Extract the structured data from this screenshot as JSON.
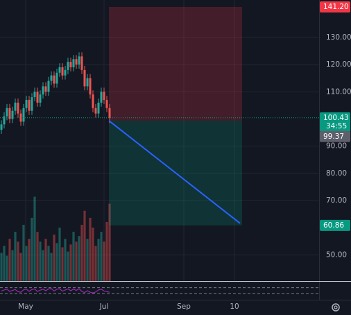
{
  "chart_data": {
    "type": "candlestick",
    "xlim": [
      -0.5,
      114.5
    ],
    "xticks": [
      {
        "value": 8.75,
        "label": "May"
      },
      {
        "value": 37,
        "label": "Jul"
      },
      {
        "value": 65.75,
        "label": "Sep"
      },
      {
        "value": 84,
        "label": "10"
      }
    ],
    "ylim": [
      40.4,
      143.75
    ],
    "yticks": [
      {
        "value": 50,
        "label": "50.00"
      },
      {
        "value": 70,
        "label": "70.00"
      },
      {
        "value": 80,
        "label": "80.00"
      },
      {
        "value": 90,
        "label": "90.00"
      },
      {
        "value": 110,
        "label": "110.00"
      },
      {
        "value": 120,
        "label": "120.00"
      },
      {
        "value": 130,
        "label": "130.00"
      }
    ],
    "grid": true,
    "up_color": "#26a69a",
    "down_color": "#ef5350",
    "open": [
      96,
      98,
      101,
      104,
      100,
      103,
      106,
      102,
      99,
      104,
      107,
      103,
      108,
      110,
      106,
      109,
      112,
      110,
      114,
      116,
      113,
      117,
      119,
      116,
      118,
      121,
      119,
      122,
      120,
      123,
      118,
      112,
      115,
      109,
      104,
      102,
      106,
      110,
      107,
      104
    ],
    "high": [
      99.5,
      102.5,
      105.5,
      105.5,
      104.5,
      107.5,
      107.5,
      103.5,
      105.5,
      108.5,
      108.5,
      109.5,
      111.5,
      111.5,
      110.5,
      113.5,
      113.5,
      115.5,
      117.5,
      117.5,
      118.5,
      120.5,
      120.5,
      119.5,
      122.5,
      122.5,
      123.5,
      123.5,
      124.5,
      124.5,
      119.5,
      116.5,
      116.5,
      110.5,
      105.5,
      107.5,
      111.5,
      111.5,
      108.5,
      105.5
    ],
    "low": [
      94.5,
      96.5,
      99.5,
      98.5,
      98.5,
      101.5,
      100.5,
      97.5,
      97.5,
      102.5,
      101.5,
      101.5,
      106.5,
      104.5,
      104.5,
      107.5,
      108.5,
      108.5,
      112.5,
      111.5,
      111.5,
      115.5,
      114.5,
      114.5,
      116.5,
      117.5,
      117.5,
      118.5,
      118.5,
      116.5,
      110.5,
      110.5,
      107.5,
      102.5,
      100.5,
      100.5,
      104.5,
      105.5,
      102.5,
      98.5
    ],
    "close": [
      98,
      101,
      104,
      100,
      103,
      106,
      102,
      99,
      104,
      107,
      103,
      108,
      110,
      106,
      109,
      112,
      110,
      114,
      116,
      113,
      117,
      119,
      116,
      118,
      121,
      119,
      122,
      120,
      123,
      118,
      112,
      115,
      109,
      104,
      102,
      106,
      110,
      107,
      104,
      100.43
    ],
    "volume": [
      20,
      25,
      18,
      30,
      22,
      35,
      28,
      20,
      40,
      25,
      30,
      45,
      60,
      35,
      28,
      22,
      30,
      25,
      20,
      33,
      27,
      38,
      24,
      30,
      21,
      26,
      35,
      28,
      32,
      40,
      50,
      30,
      45,
      38,
      25,
      30,
      35,
      28,
      42,
      55
    ],
    "volume_ylim": [
      0,
      200
    ],
    "rsi": [
      48,
      55,
      60,
      45,
      52,
      58,
      44,
      40,
      56,
      60,
      46,
      58,
      62,
      45,
      54,
      60,
      50,
      62,
      64,
      48,
      60,
      63,
      47,
      55,
      62,
      50,
      61,
      52,
      63,
      45,
      38,
      50,
      40,
      36,
      42,
      55,
      60,
      48,
      44,
      40
    ],
    "rsi_ylim": [
      0,
      100
    ],
    "rsi_bands": [
      30,
      70
    ],
    "rsi_color": "#9c27b0",
    "last_price": {
      "value": 100.43,
      "label": "100.43",
      "countdown": "34:55",
      "color": "#089981"
    },
    "position": {
      "start": 38.75,
      "end": 86.75,
      "entry": {
        "value": 99.37,
        "label": "99.37",
        "color": "#5d606b"
      },
      "stop": {
        "value": 141.2,
        "label": "141.20",
        "color": "#f23645"
      },
      "target": {
        "value": 60.86,
        "label": "60.86",
        "color": "#089981"
      },
      "line_color": "#2962ff"
    }
  }
}
